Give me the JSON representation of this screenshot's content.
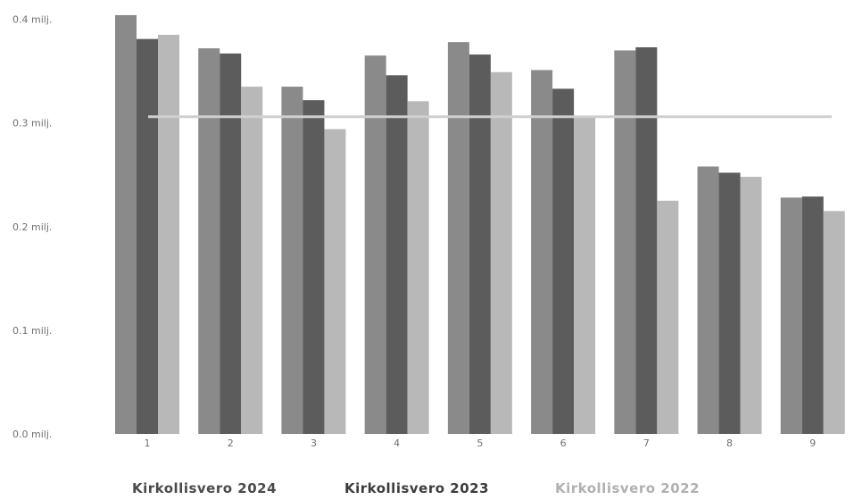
{
  "chart_data": {
    "type": "bar",
    "categories": [
      "1",
      "2",
      "3",
      "4",
      "5",
      "6",
      "7",
      "8",
      "9"
    ],
    "series": [
      {
        "name": "Kirkollisvero 2024",
        "color": "#8a8a8a",
        "values": [
          0.404,
          0.372,
          0.335,
          0.365,
          0.378,
          0.351,
          0.37,
          0.258,
          0.228
        ]
      },
      {
        "name": "Kirkollisvero 2023",
        "color": "#5c5c5c",
        "values": [
          0.381,
          0.367,
          0.322,
          0.346,
          0.366,
          0.333,
          0.373,
          0.252,
          0.229
        ]
      },
      {
        "name": "Kirkollisvero 2022",
        "color": "#b8b8b8",
        "values": [
          0.385,
          0.335,
          0.294,
          0.321,
          0.349,
          0.306,
          0.225,
          0.248,
          0.215
        ]
      }
    ],
    "reference_line": {
      "value": 0.306,
      "color": "#cfcfcf"
    },
    "yticks": [
      {
        "value": 0.0,
        "label": "0.0 milj."
      },
      {
        "value": 0.1,
        "label": "0.1 milj."
      },
      {
        "value": 0.2,
        "label": "0.2 milj."
      },
      {
        "value": 0.3,
        "label": "0.3 milj."
      },
      {
        "value": 0.4,
        "label": "0.4 milj."
      }
    ],
    "ylim": [
      0,
      0.41
    ],
    "title": "",
    "xlabel": "",
    "ylabel": "",
    "grid": false,
    "legend_position": "bottom"
  }
}
